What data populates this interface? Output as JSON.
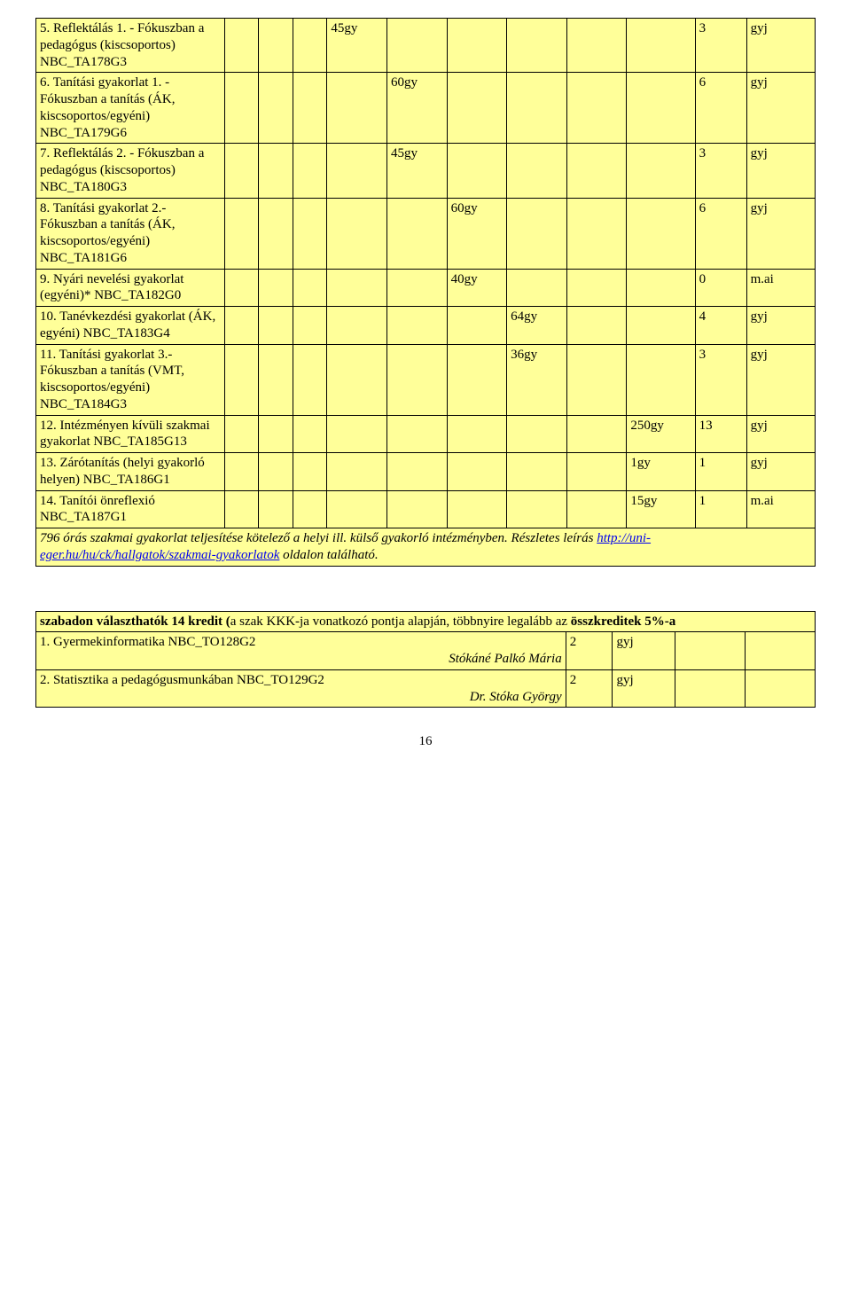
{
  "table1": {
    "rows": [
      {
        "desc": "5. Reflektálás 1. - Fókuszban a pedagógus (kiscsoportos) NBC_TA178G3",
        "gy_col": 4,
        "gy": "45gy",
        "num": "3",
        "type": "gyj"
      },
      {
        "desc": "6. Tanítási gyakorlat 1. - Fókuszban a tanítás (ÁK, kiscsoportos/egyéni) NBC_TA179G6",
        "gy_col": 5,
        "gy": "60gy",
        "num": "6",
        "type": "gyj"
      },
      {
        "desc": "7. Reflektálás 2. - Fókuszban a pedagógus (kiscsoportos) NBC_TA180G3",
        "gy_col": 5,
        "gy": "45gy",
        "num": "3",
        "type": "gyj"
      },
      {
        "desc": "8. Tanítási gyakorlat 2.- Fókuszban a tanítás (ÁK, kiscsoportos/egyéni) NBC_TA181G6",
        "gy_col": 6,
        "gy": "60gy",
        "num": "6",
        "type": "gyj"
      },
      {
        "desc": "9. Nyári nevelési gyakorlat (egyéni)* NBC_TA182G0",
        "gy_col": 6,
        "gy": "40gy",
        "num": "0",
        "type": "m.ai"
      },
      {
        "desc": "10. Tanévkezdési gyakorlat (ÁK, egyéni) NBC_TA183G4",
        "gy_col": 7,
        "gy": "64gy",
        "num": "4",
        "type": "gyj"
      },
      {
        "desc": "11. Tanítási gyakorlat 3.- Fókuszban a tanítás (VMT, kiscsoportos/egyéni) NBC_TA184G3",
        "gy_col": 7,
        "gy": "36gy",
        "num": "3",
        "type": "gyj"
      },
      {
        "desc": "12. Intézményen kívüli szakmai gyakorlat NBC_TA185G13",
        "gy_col": 9,
        "gy": "250gy",
        "num": "13",
        "type": "gyj"
      },
      {
        "desc": "13. Zárótanítás (helyi gyakorló helyen) NBC_TA186G1",
        "gy_col": 9,
        "gy": "1gy",
        "num": "1",
        "type": "gyj"
      },
      {
        "desc": "14. Tanítói önreflexió NBC_TA187G1",
        "gy_col": 9,
        "gy": "15gy",
        "num": "1",
        "type": "m.ai"
      }
    ],
    "footnote_prefix": "796 órás szakmai gyakorlat teljesítése kötelező a helyi ill. külső gyakorló intézményben. Részletes leírás ",
    "footnote_link": "http://uni-eger.hu/hu/ck/hallgatok/szakmai-gyakorlatok",
    "footnote_suffix": " oldalon található."
  },
  "table2": {
    "header_bold": "szabadon választhatók 14 kredit (",
    "header_rest": "a szak KKK-ja vonatkozó pontja alapján, többnyire legalább az",
    "header_bold2": " összkreditek 5%-a",
    "rows": [
      {
        "desc": "1. Gyermekinformatika NBC_TO128G2",
        "teacher": "Stókáné Palkó Mária",
        "num": "2",
        "type": "gyj"
      },
      {
        "desc": "2. Statisztika a pedagógusmunkában NBC_TO129G2",
        "teacher": "Dr. Stóka György",
        "num": "2",
        "type": "gyj"
      }
    ]
  },
  "page_number": "16"
}
